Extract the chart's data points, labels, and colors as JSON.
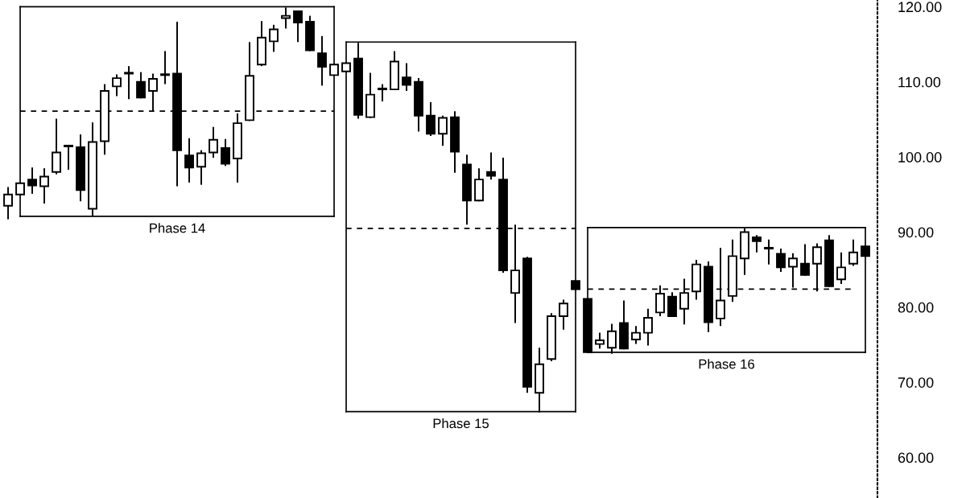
{
  "chart_data": {
    "type": "candlestick",
    "categories": [
      null,
      null,
      null,
      null,
      null,
      null,
      null,
      null,
      null,
      null,
      null,
      null,
      null,
      null,
      null,
      null,
      null,
      null,
      null,
      null,
      null,
      null,
      null,
      null,
      null,
      null,
      null,
      null,
      null,
      null,
      null,
      null,
      null,
      null,
      null,
      null,
      null,
      null,
      null,
      null,
      null,
      null,
      null,
      null,
      null,
      null,
      null,
      null,
      null,
      null,
      null,
      null,
      null,
      null,
      null,
      null,
      null,
      null,
      null,
      null,
      null,
      null,
      null,
      null,
      null,
      null,
      null,
      null,
      null,
      null,
      null,
      null
    ],
    "ohlc": [
      [
        93.5,
        96.0,
        91.7,
        95.0
      ],
      [
        95.0,
        96.6,
        94.9,
        96.5
      ],
      [
        97.0,
        98.6,
        95.1,
        96.2
      ],
      [
        96.1,
        98.5,
        93.8,
        97.4
      ],
      [
        98.0,
        105.1,
        97.7,
        100.6
      ],
      [
        101.5,
        101.6,
        98.3,
        101.4
      ],
      [
        101.3,
        103.0,
        94.1,
        95.6
      ],
      [
        93.1,
        104.6,
        92.2,
        102.0
      ],
      [
        102.1,
        109.7,
        100.3,
        108.8
      ],
      [
        109.4,
        111.0,
        108.1,
        110.5
      ],
      [
        111.1,
        112.1,
        107.7,
        111.2
      ],
      [
        110.0,
        111.3,
        107.8,
        107.9
      ],
      [
        108.8,
        111.1,
        106.1,
        110.4
      ],
      [
        110.9,
        114.1,
        109.7,
        111.0
      ],
      [
        111.1,
        118.0,
        96.1,
        100.9
      ],
      [
        100.2,
        102.5,
        96.6,
        98.6
      ],
      [
        98.7,
        100.9,
        96.3,
        100.5
      ],
      [
        100.6,
        104.0,
        99.9,
        102.3
      ],
      [
        101.2,
        102.4,
        98.8,
        99.1
      ],
      [
        99.8,
        105.8,
        96.6,
        104.5
      ],
      [
        104.9,
        115.3,
        104.8,
        110.8
      ],
      [
        112.3,
        118.1,
        112.1,
        115.9
      ],
      [
        115.4,
        117.6,
        114.0,
        117.0
      ],
      [
        118.5,
        119.9,
        117.1,
        118.8
      ],
      [
        119.4,
        119.4,
        115.3,
        117.9
      ],
      [
        118.0,
        118.8,
        114.1,
        114.2
      ],
      [
        113.8,
        116.1,
        109.5,
        112.0
      ],
      [
        110.9,
        112.4,
        110.8,
        112.3
      ],
      [
        111.4,
        112.6,
        111.3,
        112.5
      ],
      [
        113.1,
        115.2,
        105.1,
        105.6
      ],
      [
        105.3,
        111.2,
        105.2,
        108.3
      ],
      [
        109.0,
        109.7,
        107.4,
        109.1
      ],
      [
        109.0,
        114.1,
        108.9,
        112.7
      ],
      [
        110.6,
        112.5,
        108.8,
        109.6
      ],
      [
        110.0,
        110.5,
        103.4,
        105.5
      ],
      [
        105.5,
        107.3,
        102.8,
        103.1
      ],
      [
        103.1,
        105.5,
        101.5,
        105.2
      ],
      [
        105.3,
        106.1,
        97.9,
        100.7
      ],
      [
        99.0,
        100.3,
        91.0,
        94.2
      ],
      [
        94.2,
        98.5,
        94.1,
        97.0
      ],
      [
        98.0,
        100.6,
        97.0,
        97.5
      ],
      [
        97.0,
        99.9,
        84.6,
        84.9
      ],
      [
        81.9,
        91.0,
        77.9,
        84.9
      ],
      [
        86.5,
        86.7,
        68.6,
        69.4
      ],
      [
        68.6,
        74.6,
        66.0,
        72.4
      ],
      [
        73.1,
        79.2,
        72.8,
        78.8
      ],
      [
        78.8,
        81.0,
        77.0,
        80.5
      ],
      [
        83.5,
        83.6,
        82.3,
        82.4
      ],
      [
        81.1,
        81.2,
        73.9,
        74.0
      ],
      [
        75.1,
        76.6,
        74.5,
        75.6
      ],
      [
        74.6,
        77.8,
        73.8,
        76.8
      ],
      [
        77.9,
        80.9,
        74.4,
        74.5
      ],
      [
        75.7,
        77.5,
        75.1,
        76.6
      ],
      [
        76.6,
        79.8,
        74.9,
        78.6
      ],
      [
        79.3,
        82.9,
        78.8,
        81.8
      ],
      [
        81.4,
        82.0,
        78.7,
        78.8
      ],
      [
        79.8,
        83.8,
        77.7,
        81.9
      ],
      [
        82.1,
        86.3,
        81.0,
        85.7
      ],
      [
        85.4,
        86.1,
        76.7,
        78.0
      ],
      [
        78.5,
        87.9,
        77.5,
        80.9
      ],
      [
        81.5,
        89.0,
        80.7,
        86.8
      ],
      [
        86.5,
        90.5,
        84.3,
        90.0
      ],
      [
        89.3,
        89.6,
        87.3,
        88.8
      ],
      [
        87.9,
        89.0,
        85.7,
        87.8
      ],
      [
        87.1,
        87.8,
        84.7,
        85.3
      ],
      [
        85.4,
        87.2,
        82.6,
        86.5
      ],
      [
        85.8,
        88.4,
        84.2,
        84.3
      ],
      [
        85.8,
        88.5,
        82.1,
        88.0
      ],
      [
        88.9,
        89.6,
        82.7,
        82.8
      ],
      [
        83.7,
        87.3,
        83.1,
        85.3
      ],
      [
        85.8,
        89.0,
        85.5,
        87.3
      ],
      [
        88.1,
        88.2,
        86.7,
        86.8
      ]
    ],
    "series": [
      {
        "type": "line",
        "color": "#000000",
        "line_style": "solid",
        "values": [
          null,
          120.0,
          120.0,
          120.0,
          120.0,
          120.0,
          120.0,
          120.0,
          120.0,
          120.0,
          120.0,
          120.0,
          120.0,
          120.0,
          120.0,
          120.0,
          120.0,
          120.0,
          120.0,
          120.0,
          120.0,
          120.0,
          120.0,
          120.0,
          120.0,
          120.0,
          120.0,
          120.0,
          null,
          null,
          null,
          null,
          null,
          null,
          null,
          null,
          null,
          null,
          null,
          null,
          null,
          null,
          null,
          null,
          null,
          null,
          null,
          null,
          null,
          null,
          null,
          null,
          null,
          null,
          null,
          null,
          null,
          null,
          null,
          null,
          null,
          null,
          null,
          null,
          null,
          null,
          null,
          null,
          null,
          null,
          null,
          null
        ],
        "errors": [
          null,
          [
            92.1,
            120.0
          ],
          null,
          null,
          null,
          null,
          null,
          null,
          null,
          null,
          null,
          null,
          null,
          null,
          null,
          null,
          null,
          null,
          null,
          null,
          null,
          null,
          null,
          null,
          null,
          null,
          null,
          [
            92.1,
            120.0
          ],
          null,
          null,
          null,
          null,
          null,
          null,
          null,
          null,
          null,
          null,
          null,
          null,
          null,
          null,
          null,
          null,
          null,
          null,
          null,
          null,
          null,
          null,
          null,
          null,
          null,
          null,
          null,
          null,
          null,
          null,
          null,
          null,
          null,
          null,
          null,
          null,
          null,
          null,
          null,
          null,
          null,
          null,
          null,
          null
        ]
      },
      {
        "type": "line",
        "color": "#000000",
        "line_style": "solid",
        "values": [
          null,
          92.1,
          92.1,
          92.1,
          92.1,
          92.1,
          92.1,
          92.1,
          92.1,
          92.1,
          92.1,
          92.1,
          92.1,
          92.1,
          92.1,
          92.1,
          92.1,
          92.1,
          92.1,
          92.1,
          92.1,
          92.1,
          92.1,
          92.1,
          92.1,
          92.1,
          92.1,
          92.1,
          null,
          null,
          null,
          null,
          null,
          null,
          null,
          null,
          null,
          null,
          null,
          null,
          null,
          null,
          null,
          null,
          null,
          null,
          null,
          null,
          null,
          null,
          null,
          null,
          null,
          null,
          null,
          null,
          null,
          null,
          null,
          null,
          null,
          null,
          null,
          null,
          null,
          null,
          null,
          null,
          null,
          null,
          null,
          null
        ]
      },
      {
        "type": "line",
        "color": "#000000",
        "line_style": "dashed",
        "values": [
          null,
          106.1,
          106.1,
          106.1,
          106.1,
          106.1,
          106.1,
          106.1,
          106.1,
          106.1,
          106.1,
          106.1,
          106.1,
          106.1,
          106.1,
          106.1,
          106.1,
          106.1,
          106.1,
          106.1,
          106.1,
          106.1,
          106.1,
          106.1,
          106.1,
          106.1,
          106.1,
          106.1,
          null,
          null,
          null,
          null,
          null,
          null,
          null,
          null,
          null,
          null,
          null,
          null,
          null,
          null,
          null,
          null,
          null,
          null,
          null,
          null,
          null,
          null,
          null,
          null,
          null,
          null,
          null,
          null,
          null,
          null,
          null,
          null,
          null,
          null,
          null,
          null,
          null,
          null,
          null,
          null,
          null,
          null,
          null,
          null
        ]
      },
      {
        "type": "line",
        "color": "#000000",
        "line_style": "solid",
        "values": [
          null,
          null,
          null,
          null,
          null,
          null,
          null,
          null,
          null,
          null,
          null,
          null,
          null,
          null,
          null,
          null,
          null,
          null,
          null,
          null,
          null,
          null,
          null,
          null,
          null,
          null,
          null,
          null,
          115.3,
          115.3,
          115.3,
          115.3,
          115.3,
          115.3,
          115.3,
          115.3,
          115.3,
          115.3,
          115.3,
          115.3,
          115.3,
          115.3,
          115.3,
          115.3,
          115.3,
          115.3,
          115.3,
          115.3,
          null,
          null,
          null,
          null,
          null,
          null,
          null,
          null,
          null,
          null,
          null,
          null,
          null,
          null,
          null,
          null,
          null,
          null,
          null,
          null,
          null,
          null,
          null,
          null
        ],
        "errors": [
          null,
          null,
          null,
          null,
          null,
          null,
          null,
          null,
          null,
          null,
          null,
          null,
          null,
          null,
          null,
          null,
          null,
          null,
          null,
          null,
          null,
          null,
          null,
          null,
          null,
          null,
          null,
          null,
          [
            66.1,
            115.3
          ],
          null,
          null,
          null,
          null,
          null,
          null,
          null,
          null,
          null,
          null,
          null,
          null,
          null,
          null,
          null,
          null,
          null,
          null,
          [
            66.1,
            115.3
          ],
          null,
          null,
          null,
          null,
          null,
          null,
          null,
          null,
          null,
          null,
          null,
          null,
          null,
          null,
          null,
          null,
          null,
          null,
          null,
          null,
          null,
          null,
          null,
          null
        ]
      },
      {
        "type": "line",
        "color": "#000000",
        "line_style": "solid",
        "values": [
          null,
          null,
          null,
          null,
          null,
          null,
          null,
          null,
          null,
          null,
          null,
          null,
          null,
          null,
          null,
          null,
          null,
          null,
          null,
          null,
          null,
          null,
          null,
          null,
          null,
          null,
          null,
          null,
          66.1,
          66.1,
          66.1,
          66.1,
          66.1,
          66.1,
          66.1,
          66.1,
          66.1,
          66.1,
          66.1,
          66.1,
          66.1,
          66.1,
          66.1,
          66.1,
          66.1,
          66.1,
          66.1,
          66.1,
          null,
          null,
          null,
          null,
          null,
          null,
          null,
          null,
          null,
          null,
          null,
          null,
          null,
          null,
          null,
          null,
          null,
          null,
          null,
          null,
          null,
          null,
          null,
          null
        ]
      },
      {
        "type": "line",
        "color": "#000000",
        "line_style": "dashed",
        "values": [
          null,
          null,
          null,
          null,
          null,
          null,
          null,
          null,
          null,
          null,
          null,
          null,
          null,
          null,
          null,
          null,
          null,
          null,
          null,
          null,
          null,
          null,
          null,
          null,
          null,
          null,
          null,
          null,
          90.5,
          90.5,
          90.5,
          90.5,
          90.5,
          90.5,
          90.5,
          90.5,
          90.5,
          90.5,
          90.5,
          90.5,
          90.5,
          90.5,
          90.5,
          90.5,
          90.5,
          90.5,
          90.5,
          90.5,
          null,
          null,
          null,
          null,
          null,
          null,
          null,
          null,
          null,
          null,
          null,
          null,
          null,
          null,
          null,
          null,
          null,
          null,
          null,
          null,
          null,
          null,
          null,
          null
        ]
      },
      {
        "type": "line",
        "color": "#000000",
        "line_style": "solid",
        "values": [
          null,
          null,
          null,
          null,
          null,
          null,
          null,
          null,
          null,
          null,
          null,
          null,
          null,
          null,
          null,
          null,
          null,
          null,
          null,
          null,
          null,
          null,
          null,
          null,
          null,
          null,
          null,
          null,
          null,
          null,
          null,
          null,
          null,
          null,
          null,
          null,
          null,
          null,
          null,
          null,
          null,
          null,
          null,
          null,
          null,
          null,
          null,
          null,
          90.6,
          90.6,
          90.6,
          90.6,
          90.6,
          90.6,
          90.6,
          90.6,
          90.6,
          90.6,
          90.6,
          90.6,
          90.6,
          90.6,
          90.6,
          90.6,
          90.6,
          90.6,
          90.6,
          90.6,
          90.6,
          90.6,
          90.6,
          90.6
        ],
        "errors": [
          null,
          null,
          null,
          null,
          null,
          null,
          null,
          null,
          null,
          null,
          null,
          null,
          null,
          null,
          null,
          null,
          null,
          null,
          null,
          null,
          null,
          null,
          null,
          null,
          null,
          null,
          null,
          null,
          null,
          null,
          null,
          null,
          null,
          null,
          null,
          null,
          null,
          null,
          null,
          null,
          null,
          null,
          null,
          null,
          null,
          null,
          null,
          null,
          [
            74.0,
            90.6
          ],
          null,
          null,
          null,
          null,
          null,
          null,
          null,
          null,
          null,
          null,
          null,
          null,
          null,
          null,
          null,
          null,
          null,
          null,
          null,
          null,
          null,
          null,
          [
            74.0,
            90.6
          ]
        ]
      },
      {
        "type": "line",
        "color": "#000000",
        "line_style": "solid",
        "values": [
          null,
          null,
          null,
          null,
          null,
          null,
          null,
          null,
          null,
          null,
          null,
          null,
          null,
          null,
          null,
          null,
          null,
          null,
          null,
          null,
          null,
          null,
          null,
          null,
          null,
          null,
          null,
          null,
          null,
          null,
          null,
          null,
          null,
          null,
          null,
          null,
          null,
          null,
          null,
          null,
          null,
          null,
          null,
          null,
          null,
          null,
          null,
          null,
          74.0,
          74.0,
          74.0,
          74.0,
          74.0,
          74.0,
          74.0,
          74.0,
          74.0,
          74.0,
          74.0,
          74.0,
          74.0,
          74.0,
          74.0,
          74.0,
          74.0,
          74.0,
          74.0,
          74.0,
          74.0,
          74.0,
          74.0,
          74.0
        ]
      },
      {
        "type": "line",
        "color": "#000000",
        "line_style": "dashed",
        "values": [
          null,
          null,
          null,
          null,
          null,
          null,
          null,
          null,
          null,
          null,
          null,
          null,
          null,
          null,
          null,
          null,
          null,
          null,
          null,
          null,
          null,
          null,
          null,
          null,
          null,
          null,
          null,
          null,
          null,
          null,
          null,
          null,
          null,
          null,
          null,
          null,
          null,
          null,
          null,
          null,
          null,
          null,
          null,
          null,
          null,
          null,
          null,
          null,
          82.4,
          82.4,
          82.4,
          82.4,
          82.4,
          82.4,
          82.4,
          82.4,
          82.4,
          82.4,
          82.4,
          82.4,
          82.4,
          82.4,
          82.4,
          82.4,
          82.4,
          82.4,
          82.4,
          82.4,
          82.4,
          82.4,
          82.4,
          null
        ]
      }
    ],
    "annotations": [
      "Phase 14",
      "Phase 15",
      "Phase 16"
    ],
    "ylim": [
      54.6,
      120.9
    ],
    "yticks": [
      {
        "value": 60,
        "label": "60.00"
      },
      {
        "value": 70,
        "label": "70.00"
      },
      {
        "value": 80,
        "label": "80.00"
      },
      {
        "value": 90,
        "label": "90.00"
      },
      {
        "value": 100,
        "label": "100.00"
      },
      {
        "value": 110,
        "label": "110.00"
      },
      {
        "value": 120,
        "label": "120.00"
      }
    ],
    "tick_labels": "y",
    "grid": false
  }
}
